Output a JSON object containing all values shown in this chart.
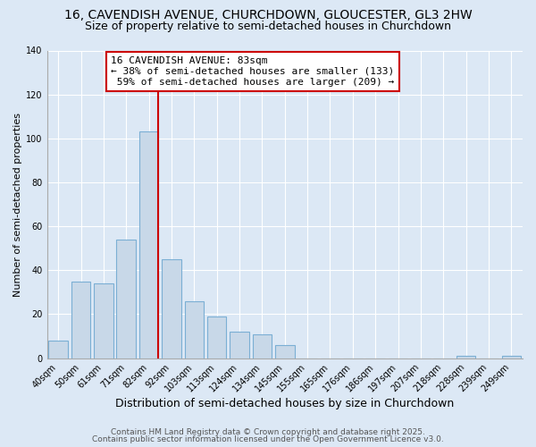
{
  "title": "16, CAVENDISH AVENUE, CHURCHDOWN, GLOUCESTER, GL3 2HW",
  "subtitle": "Size of property relative to semi-detached houses in Churchdown",
  "xlabel": "Distribution of semi-detached houses by size in Churchdown",
  "ylabel": "Number of semi-detached properties",
  "categories": [
    "40sqm",
    "50sqm",
    "61sqm",
    "71sqm",
    "82sqm",
    "92sqm",
    "103sqm",
    "113sqm",
    "124sqm",
    "134sqm",
    "145sqm",
    "155sqm",
    "165sqm",
    "176sqm",
    "186sqm",
    "197sqm",
    "207sqm",
    "218sqm",
    "228sqm",
    "239sqm",
    "249sqm"
  ],
  "values": [
    8,
    35,
    34,
    54,
    103,
    45,
    26,
    19,
    12,
    11,
    6,
    0,
    0,
    0,
    0,
    0,
    0,
    0,
    1,
    0,
    1
  ],
  "bar_color": "#c8d8e8",
  "bar_edge_color": "#7bafd4",
  "vline_color": "#cc0000",
  "vline_x_index": 4,
  "annotation_text": "16 CAVENDISH AVENUE: 83sqm\n← 38% of semi-detached houses are smaller (133)\n 59% of semi-detached houses are larger (209) →",
  "annotation_box_color": "#ffffff",
  "annotation_box_edge_color": "#cc0000",
  "ylim": [
    0,
    140
  ],
  "yticks": [
    0,
    20,
    40,
    60,
    80,
    100,
    120,
    140
  ],
  "footer1": "Contains HM Land Registry data © Crown copyright and database right 2025.",
  "footer2": "Contains public sector information licensed under the Open Government Licence v3.0.",
  "background_color": "#dce8f5",
  "plot_bg_color": "#dce8f5",
  "title_fontsize": 10,
  "subtitle_fontsize": 9,
  "xlabel_fontsize": 9,
  "ylabel_fontsize": 8,
  "tick_fontsize": 7,
  "annotation_fontsize": 8,
  "footer_fontsize": 6.5
}
